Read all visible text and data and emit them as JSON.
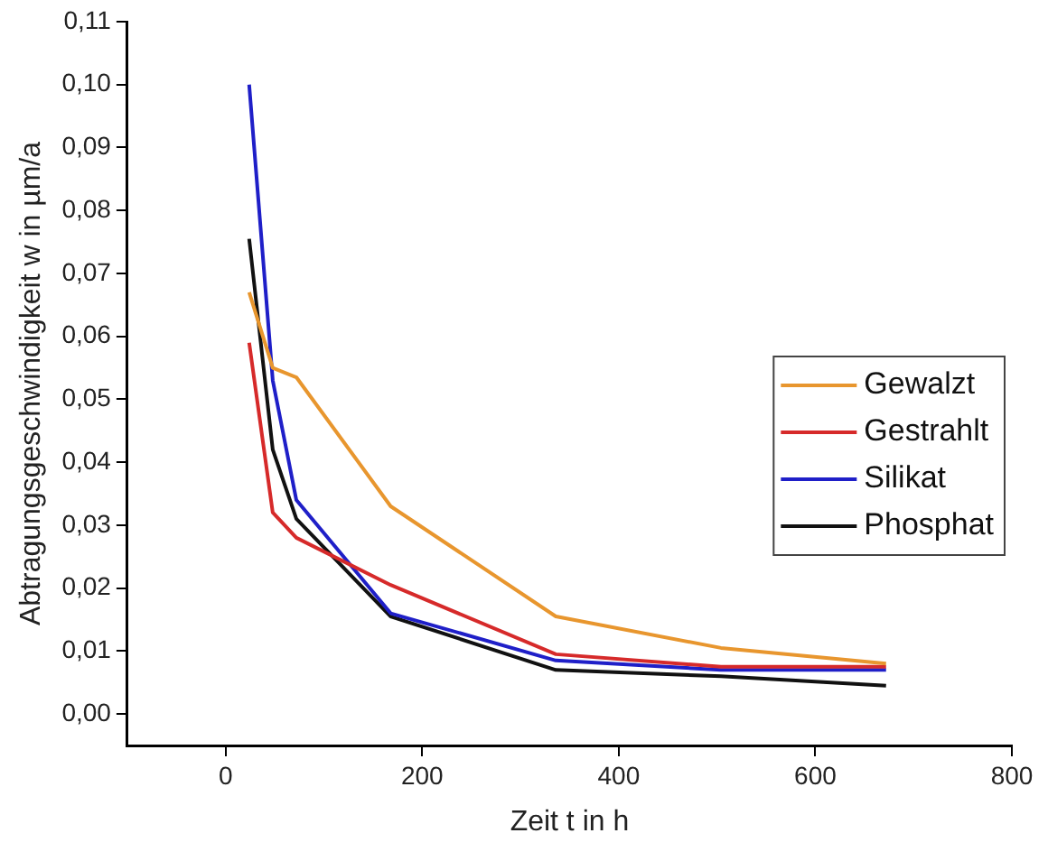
{
  "chart_data": {
    "type": "line",
    "xlabel": "Zeit t in h",
    "ylabel": "Abtragungsgeschwindigkeit w in µm/a",
    "x": [
      24,
      48,
      72,
      168,
      336,
      504,
      672
    ],
    "series": [
      {
        "name": "Gewalzt",
        "color": "#e8962e",
        "values": [
          0.067,
          0.055,
          0.0535,
          0.033,
          0.0155,
          0.0105,
          0.008
        ]
      },
      {
        "name": "Gestrahlt",
        "color": "#d62a2a",
        "values": [
          0.059,
          0.032,
          0.028,
          0.0205,
          0.0095,
          0.0075,
          0.0075
        ]
      },
      {
        "name": "Silikat",
        "color": "#1f1fc8",
        "values": [
          0.1,
          0.053,
          0.034,
          0.016,
          0.0085,
          0.007,
          0.007
        ]
      },
      {
        "name": "Phosphat",
        "color": "#111111",
        "values": [
          0.0755,
          0.042,
          0.031,
          0.0155,
          0.007,
          0.006,
          0.0045
        ]
      }
    ],
    "xlim": [
      -100,
      800
    ],
    "xticks": [
      0,
      200,
      400,
      600,
      800
    ],
    "ylim": [
      -0.005,
      0.11
    ],
    "yticks": [
      {
        "value": 0,
        "label": "0,00"
      },
      {
        "value": 0.01,
        "label": "0,01"
      },
      {
        "value": 0.02,
        "label": "0,02"
      },
      {
        "value": 0.03,
        "label": "0,03"
      },
      {
        "value": 0.04,
        "label": "0,04"
      },
      {
        "value": 0.05,
        "label": "0,05"
      },
      {
        "value": 0.06,
        "label": "0,06"
      },
      {
        "value": 0.07,
        "label": "0,07"
      },
      {
        "value": 0.08,
        "label": "0,08"
      },
      {
        "value": 0.09,
        "label": "0,09"
      },
      {
        "value": 0.1,
        "label": "0,10"
      },
      {
        "value": 0.11,
        "label": "0,11"
      }
    ],
    "grid": false,
    "legend": "right",
    "marker": "none",
    "line_style": "solid"
  }
}
